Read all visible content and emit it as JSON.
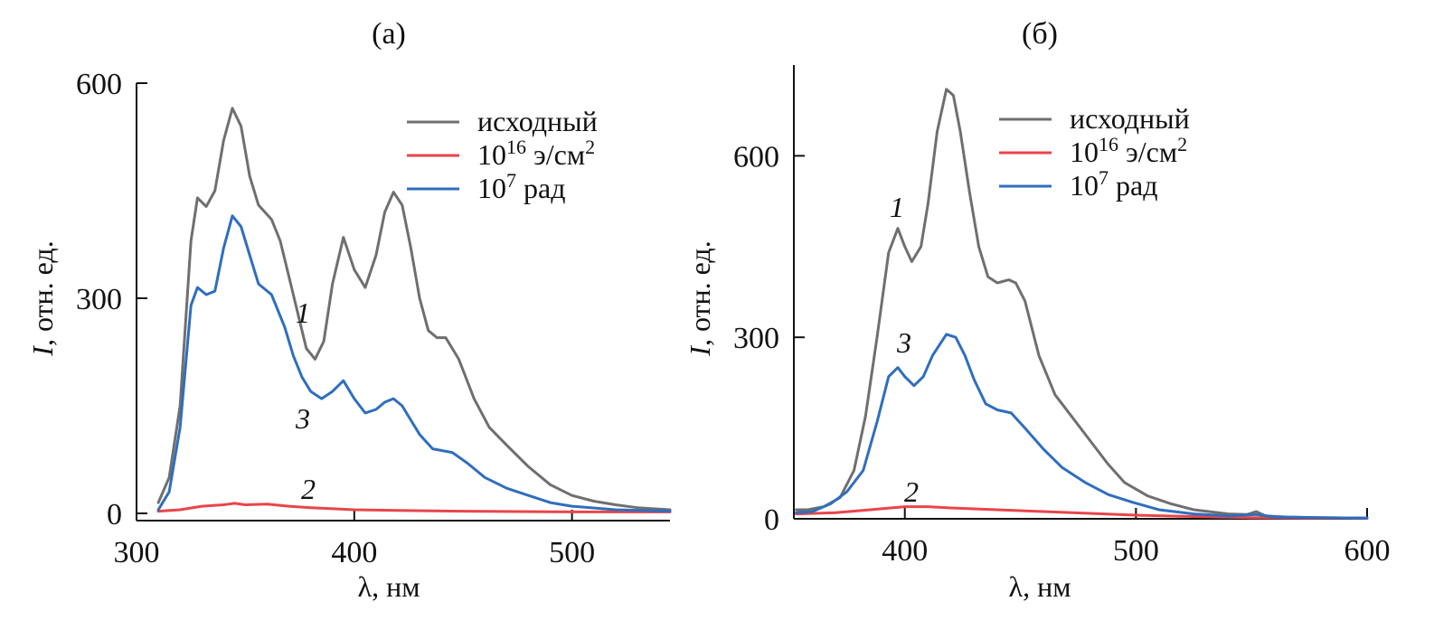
{
  "chart_data": [
    {
      "type": "line",
      "title": "(a)",
      "xlabel": "λ, нм",
      "ylabel": "I, отн. ед.",
      "ylabel_italic_part": "I",
      "ylabel_rest": ", отн. ед.",
      "xlim": [
        300,
        545
      ],
      "ylim": [
        0,
        600
      ],
      "xticks": [
        300,
        400,
        500
      ],
      "yticks": [
        0,
        300,
        600
      ],
      "grid": false,
      "legend_position": "top-right",
      "series": [
        {
          "name": "исходный",
          "legend_base": "исходный",
          "legend_sup": "",
          "legend_tail": "",
          "legend_sup2": "",
          "color": "#6f6f6f",
          "curve_label": "1",
          "x": [
            310,
            315,
            320,
            325,
            328,
            332,
            336,
            340,
            344,
            348,
            352,
            356,
            362,
            366,
            370,
            374,
            378,
            382,
            386,
            390,
            395,
            400,
            405,
            410,
            414,
            418,
            422,
            426,
            430,
            434,
            438,
            442,
            448,
            455,
            462,
            470,
            480,
            490,
            500,
            510,
            520,
            530,
            545
          ],
          "y": [
            15,
            50,
            150,
            380,
            440,
            428,
            450,
            520,
            565,
            540,
            470,
            430,
            410,
            380,
            330,
            280,
            230,
            215,
            240,
            320,
            385,
            340,
            315,
            360,
            420,
            448,
            430,
            370,
            300,
            255,
            245,
            245,
            215,
            160,
            120,
            95,
            65,
            40,
            25,
            17,
            12,
            8,
            5
          ]
        },
        {
          "name": "10^16 э/см^2",
          "legend_base": "10",
          "legend_sup": "16",
          "legend_tail": " э/см",
          "legend_sup2": "2",
          "color": "#e8454a",
          "curve_label": "2",
          "x": [
            310,
            320,
            330,
            340,
            345,
            350,
            360,
            370,
            380,
            400,
            420,
            450,
            500,
            545
          ],
          "y": [
            3,
            5,
            10,
            12,
            14,
            12,
            13,
            10,
            8,
            5,
            4,
            3,
            2,
            2
          ]
        },
        {
          "name": "10^7 рад",
          "legend_base": "10",
          "legend_sup": "7",
          "legend_tail": " рад",
          "legend_sup2": "",
          "color": "#2f6ebd",
          "curve_label": "3",
          "x": [
            310,
            315,
            320,
            325,
            328,
            332,
            336,
            340,
            344,
            348,
            352,
            356,
            362,
            368,
            372,
            376,
            380,
            385,
            390,
            395,
            400,
            405,
            410,
            414,
            418,
            422,
            426,
            430,
            436,
            445,
            452,
            460,
            470,
            480,
            490,
            500,
            520,
            545
          ],
          "y": [
            5,
            30,
            120,
            290,
            315,
            305,
            310,
            370,
            415,
            400,
            360,
            320,
            305,
            260,
            220,
            190,
            170,
            160,
            170,
            185,
            160,
            140,
            145,
            155,
            160,
            150,
            130,
            110,
            90,
            85,
            70,
            50,
            35,
            25,
            15,
            10,
            5,
            3
          ]
        }
      ]
    },
    {
      "type": "line",
      "title": "(б)",
      "xlabel": "λ, нм",
      "ylabel": "I, отн. ед.",
      "ylabel_italic_part": "I",
      "ylabel_rest": ", отн. ед.",
      "xlim": [
        352,
        600
      ],
      "ylim": [
        0,
        750
      ],
      "xticks": [
        400,
        500,
        600
      ],
      "yticks": [
        0,
        300,
        600
      ],
      "grid": false,
      "legend_position": "top-right",
      "series": [
        {
          "name": "исходный",
          "legend_base": "исходный",
          "legend_sup": "",
          "legend_tail": "",
          "legend_sup2": "",
          "color": "#6f6f6f",
          "curve_label": "1",
          "x": [
            353,
            358,
            365,
            372,
            378,
            383,
            388,
            393,
            397,
            400,
            403,
            407,
            410,
            414,
            418,
            421,
            424,
            428,
            432,
            436,
            440,
            445,
            448,
            452,
            458,
            465,
            472,
            480,
            488,
            495,
            505,
            515,
            525,
            540,
            548,
            552,
            556,
            565,
            580,
            600
          ],
          "y": [
            15,
            15,
            20,
            35,
            80,
            170,
            300,
            440,
            480,
            450,
            425,
            450,
            520,
            640,
            710,
            700,
            640,
            540,
            450,
            400,
            390,
            395,
            390,
            360,
            270,
            205,
            170,
            130,
            90,
            60,
            38,
            25,
            15,
            8,
            7,
            12,
            5,
            3,
            2,
            1
          ]
        },
        {
          "name": "10^16 э/см^2",
          "legend_base": "10",
          "legend_sup": "16",
          "legend_tail": " э/см",
          "legend_sup2": "2",
          "color": "#e8454a",
          "curve_label": "2",
          "x": [
            353,
            370,
            385,
            400,
            410,
            420,
            440,
            460,
            480,
            500,
            520,
            550,
            575,
            600
          ],
          "y": [
            8,
            10,
            15,
            20,
            20,
            18,
            15,
            12,
            9,
            6,
            4,
            2,
            1,
            1
          ]
        },
        {
          "name": "10^7 рад",
          "legend_base": "10",
          "legend_sup": "7",
          "legend_tail": " рад",
          "legend_sup2": "",
          "color": "#2f6ebd",
          "curve_label": "3",
          "x": [
            353,
            360,
            368,
            375,
            382,
            388,
            393,
            397,
            400,
            404,
            408,
            412,
            418,
            422,
            426,
            430,
            435,
            440,
            446,
            452,
            460,
            468,
            478,
            488,
            498,
            510,
            525,
            540,
            552,
            560,
            580,
            600
          ],
          "y": [
            10,
            12,
            25,
            45,
            80,
            160,
            235,
            250,
            235,
            220,
            235,
            270,
            305,
            300,
            270,
            230,
            190,
            180,
            175,
            150,
            115,
            85,
            60,
            40,
            28,
            15,
            8,
            5,
            7,
            3,
            2,
            1
          ]
        }
      ]
    }
  ]
}
